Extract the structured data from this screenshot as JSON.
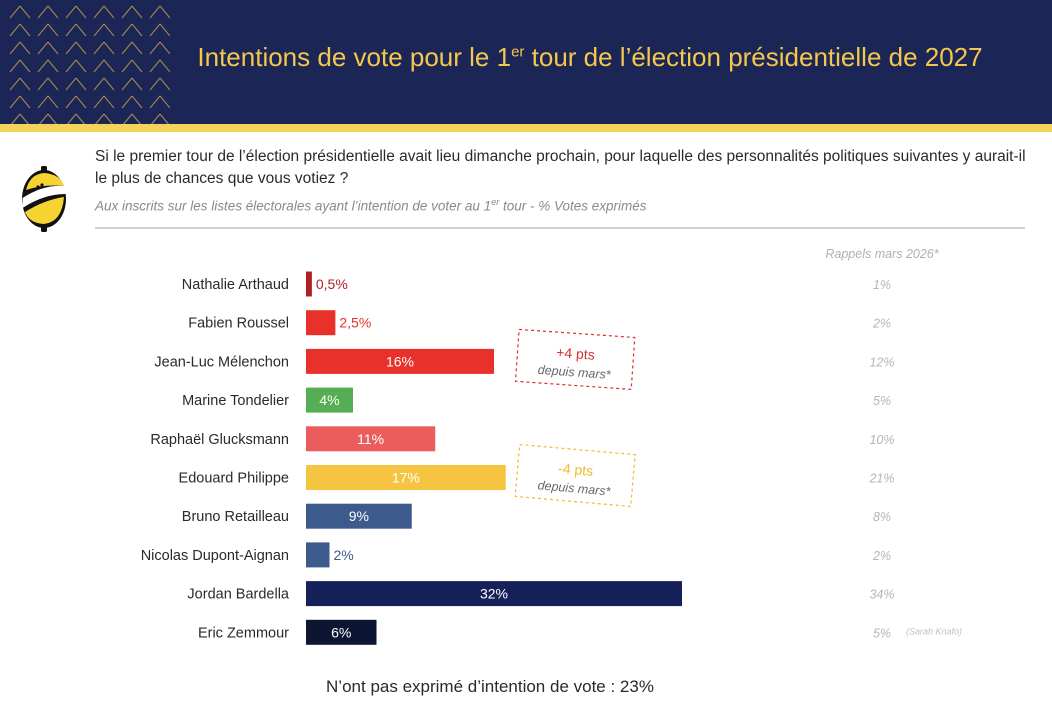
{
  "header": {
    "title_pre": "Intentions de vote pour le 1",
    "title_sup": "er",
    "title_post": " tour de l’élection présidentielle de 2027"
  },
  "question": {
    "text": "Si le premier tour de l’élection présidentielle avait lieu dimanche prochain, pour laquelle des personnalités politiques suivantes y aurait-il le plus de chances que vous votiez ?",
    "subtitle_pre": "Aux inscrits sur les listes électorales ayant l’intention de voter au 1",
    "subtitle_sup": "er",
    "subtitle_post": " tour  - % Votes exprimés"
  },
  "colors": {
    "header_bg": "#1b2556",
    "header_title": "#f3c84c",
    "stripe": "#f3d35a",
    "recall_text": "#b5b5b5"
  },
  "chart_data": {
    "type": "bar",
    "orientation": "horizontal",
    "unit": "%",
    "xlim": [
      0,
      34
    ],
    "recall_header": "Rappels mars 2026*",
    "categories": [
      "Nathalie Arthaud",
      "Fabien Roussel",
      "Jean-Luc Mélenchon",
      "Marine Tondelier",
      "Raphaël Glucksmann",
      "Edouard Philippe",
      "Bruno Retailleau",
      "Nicolas Dupont-Aignan",
      "Jordan Bardella",
      "Eric Zemmour"
    ],
    "values": [
      0.5,
      2.5,
      16,
      4,
      11,
      17,
      9,
      2,
      32,
      6
    ],
    "value_labels": [
      "0,5%",
      "2,5%",
      "16%",
      "4%",
      "11%",
      "17%",
      "9%",
      "2%",
      "32%",
      "6%"
    ],
    "bar_colors": [
      "#b41f24",
      "#e8312b",
      "#e8312b",
      "#55ae55",
      "#eb5c5c",
      "#f5c542",
      "#3d5a8c",
      "#3d5a8c",
      "#16215a",
      "#0c1532"
    ],
    "recall_values": [
      1,
      2,
      12,
      5,
      10,
      21,
      8,
      2,
      34,
      5
    ],
    "recall_labels": [
      "1%",
      "2%",
      "12%",
      "5%",
      "10%",
      "21%",
      "8%",
      "2%",
      "34%",
      "5%"
    ],
    "recall_notes": [
      "",
      "",
      "",
      "",
      "",
      "",
      "",
      "",
      "",
      "(Sarah Knafo)"
    ],
    "annotations": [
      {
        "category": "Jean-Luc Mélenchon",
        "main": "+4 pts",
        "sub": "depuis mars*",
        "color": "#d4312e"
      },
      {
        "category": "Edouard Philippe",
        "main": "-4 pts",
        "sub": "depuis mars*",
        "color": "#f1b92f"
      }
    ]
  },
  "footer": {
    "note": "N’ont pas exprimé d’intention de vote : 23%"
  }
}
